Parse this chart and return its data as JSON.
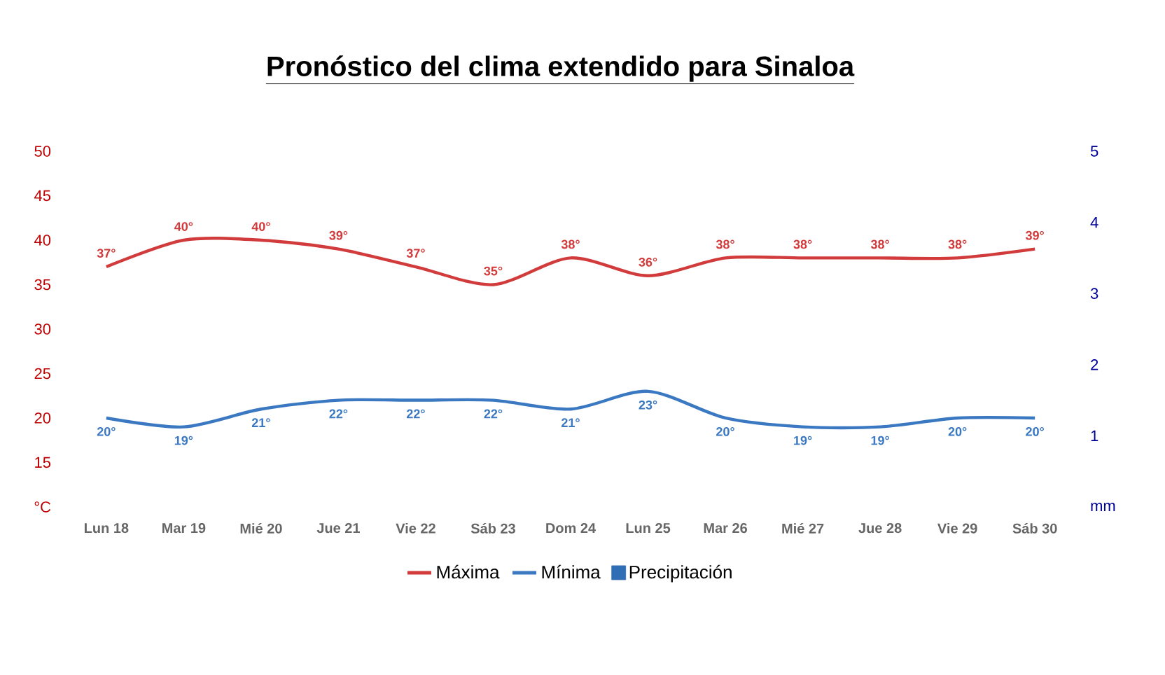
{
  "chart_data": {
    "type": "line",
    "title": "Pronóstico del clima extendido para Sinaloa",
    "categories": [
      "Lun 18",
      "Mar 19",
      "Mié 20",
      "Jue 21",
      "Vie 22",
      "Sáb 23",
      "Dom 24",
      "Lun 25",
      "Mar 26",
      "Mié 27",
      "Jue 28",
      "Vie 29",
      "Sáb 30"
    ],
    "series": [
      {
        "name": "Máxima",
        "color": "#d23b3b",
        "values": [
          37,
          40,
          40,
          39,
          37,
          35,
          38,
          36,
          38,
          38,
          38,
          38,
          39
        ],
        "value_labels": [
          "37°",
          "40°",
          "40°",
          "39°",
          "37°",
          "35°",
          "38°",
          "36°",
          "38°",
          "38°",
          "38°",
          "38°",
          "39°"
        ]
      },
      {
        "name": "Mínima",
        "color": "#3a78c2",
        "values": [
          20,
          19,
          21,
          22,
          22,
          22,
          21,
          23,
          20,
          19,
          19,
          20,
          20
        ],
        "value_labels": [
          "20°",
          "19°",
          "21°",
          "22°",
          "22°",
          "22°",
          "21°",
          "23°",
          "20°",
          "19°",
          "19°",
          "20°",
          "20°"
        ]
      },
      {
        "name": "Precipitación",
        "type": "bar",
        "color": "#2f6db5",
        "values": [
          null,
          null,
          null,
          null,
          null,
          null,
          null,
          null,
          null,
          null,
          null,
          null,
          null
        ]
      }
    ],
    "ylim": [
      10,
      50
    ],
    "yticks": [
      {
        "value": 10,
        "label": "°C"
      },
      15,
      20,
      25,
      30,
      35,
      40,
      45,
      50
    ],
    "y2lim": [
      0,
      5
    ],
    "y2ticks": [
      {
        "value": 0,
        "label": "mm"
      },
      1,
      2,
      3,
      4,
      5
    ],
    "grid": false,
    "legend": "bottom"
  }
}
